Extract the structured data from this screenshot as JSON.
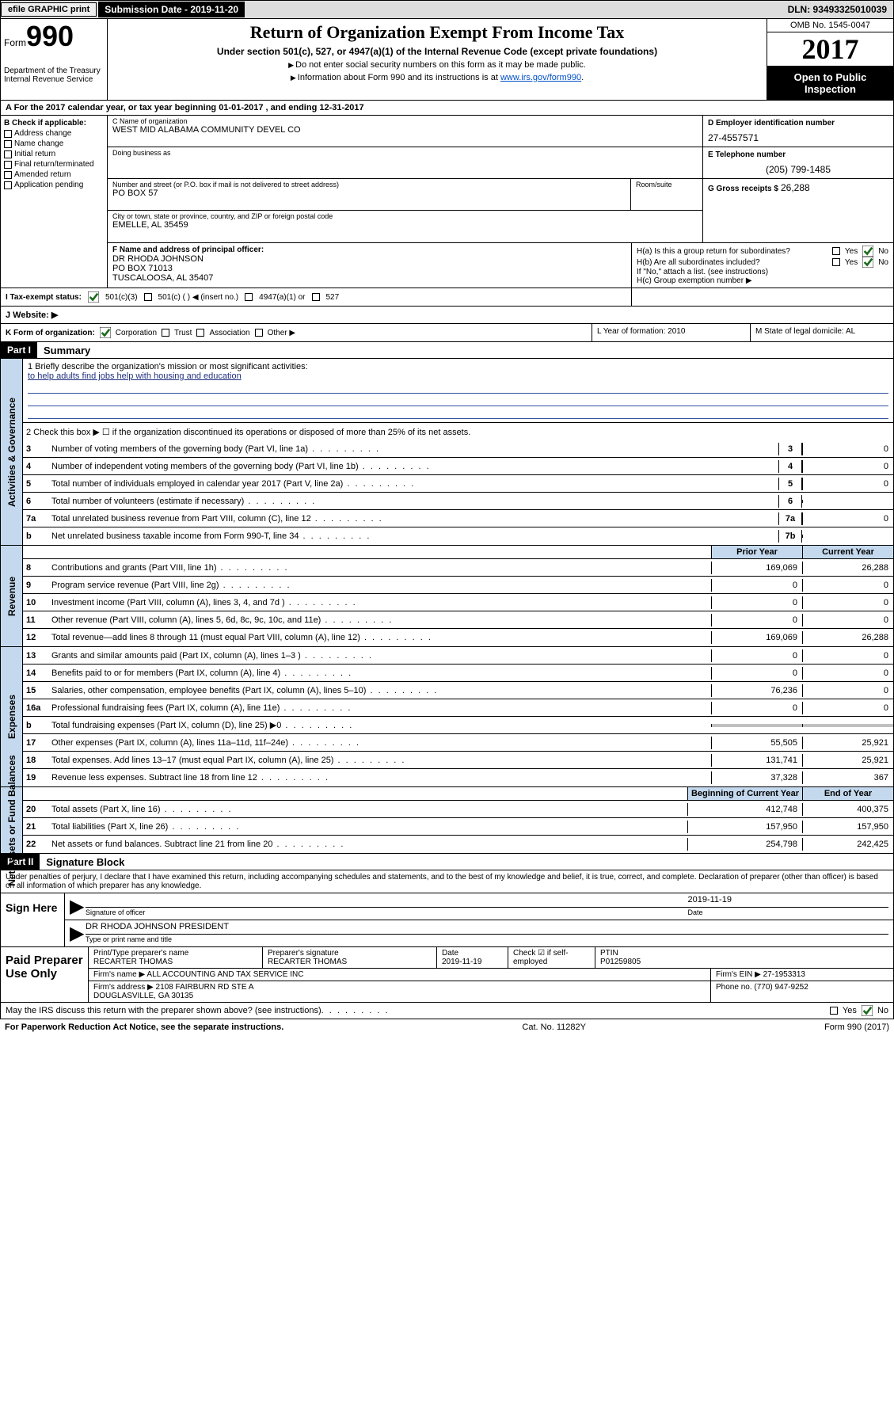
{
  "topbar": {
    "efile": "efile GRAPHIC print",
    "submission_label": "Submission Date - 2019-11-20",
    "dln": "DLN: 93493325010039"
  },
  "header": {
    "form_word": "Form",
    "form_num": "990",
    "dept": "Department of the Treasury\nInternal Revenue Service",
    "title": "Return of Organization Exempt From Income Tax",
    "sub1": "Under section 501(c), 527, or 4947(a)(1) of the Internal Revenue Code (except private foundations)",
    "sub2a": "Do not enter social security numbers on this form as it may be made public.",
    "sub2b": "Information about Form 990 and its instructions is at ",
    "link": "www.irs.gov/form990",
    "omb": "OMB No. 1545-0047",
    "year": "2017",
    "open": "Open to Public Inspection"
  },
  "rowA": "A  For the 2017 calendar year, or tax year beginning 01-01-2017   , and ending 12-31-2017",
  "boxB": {
    "hdr": "B Check if applicable:",
    "items": [
      "Address change",
      "Name change",
      "Initial return",
      "Final return/terminated",
      "Amended return",
      "Application pending"
    ]
  },
  "boxC": {
    "name_lbl": "C Name of organization",
    "name": "WEST MID ALABAMA COMMUNITY DEVEL CO",
    "dba_lbl": "Doing business as",
    "dba": "",
    "street_lbl": "Number and street (or P.O. box if mail is not delivered to street address)",
    "street": "PO BOX 57",
    "room_lbl": "Room/suite",
    "city_lbl": "City or town, state or province, country, and ZIP or foreign postal code",
    "city": "EMELLE, AL  35459"
  },
  "boxD": {
    "lbl": "D Employer identification number",
    "val": "27-4557571"
  },
  "boxE": {
    "lbl": "E Telephone number",
    "val": "(205) 799-1485"
  },
  "boxG": {
    "lbl": "G Gross receipts $",
    "val": "26,288"
  },
  "boxF": {
    "lbl": "F  Name and address of principal officer:",
    "name": "DR RHODA JOHNSON",
    "addr1": "PO BOX 71013",
    "addr2": "TUSCALOOSA, AL  35407"
  },
  "boxH": {
    "a": "H(a)  Is this a group return for subordinates?",
    "b": "H(b)  Are all subordinates included?",
    "note": "If \"No,\" attach a list. (see instructions)",
    "c": "H(c)  Group exemption number ▶",
    "yes": "Yes",
    "no": "No"
  },
  "boxI": {
    "lbl": "I  Tax-exempt status:",
    "opts": [
      "501(c)(3)",
      "501(c) (  ) ◀ (insert no.)",
      "4947(a)(1) or",
      "527"
    ]
  },
  "boxJ": "J  Website: ▶",
  "boxK": {
    "lbl": "K Form of organization:",
    "opts": [
      "Corporation",
      "Trust",
      "Association",
      "Other ▶"
    ]
  },
  "boxL": "L Year of formation: 2010",
  "boxM": "M State of legal domicile: AL",
  "part1": {
    "hdr": "Part I",
    "title": "Summary"
  },
  "summary": {
    "briefly_lbl": "1   Briefly describe the organization's mission or most significant activities:",
    "briefly_val": "to help adults find jobs help with housing and education",
    "line2": "2   Check this box ▶ ☐  if the organization discontinued its operations or disposed of more than 25% of its net assets.",
    "col_prior": "Prior Year",
    "col_current": "Current Year",
    "col_beg": "Beginning of Current Year",
    "col_end": "End of Year",
    "gov": [
      {
        "n": "3",
        "t": "Number of voting members of the governing body (Part VI, line 1a)",
        "rn": "3",
        "v": "0"
      },
      {
        "n": "4",
        "t": "Number of independent voting members of the governing body (Part VI, line 1b)",
        "rn": "4",
        "v": "0"
      },
      {
        "n": "5",
        "t": "Total number of individuals employed in calendar year 2017 (Part V, line 2a)",
        "rn": "5",
        "v": "0"
      },
      {
        "n": "6",
        "t": "Total number of volunteers (estimate if necessary)",
        "rn": "6",
        "v": ""
      },
      {
        "n": "7a",
        "t": "Total unrelated business revenue from Part VIII, column (C), line 12",
        "rn": "7a",
        "v": "0"
      },
      {
        "n": "b",
        "t": "Net unrelated business taxable income from Form 990-T, line 34",
        "rn": "7b",
        "v": ""
      }
    ],
    "rev": [
      {
        "n": "8",
        "t": "Contributions and grants (Part VIII, line 1h)",
        "p": "169,069",
        "c": "26,288"
      },
      {
        "n": "9",
        "t": "Program service revenue (Part VIII, line 2g)",
        "p": "0",
        "c": "0"
      },
      {
        "n": "10",
        "t": "Investment income (Part VIII, column (A), lines 3, 4, and 7d )",
        "p": "0",
        "c": "0"
      },
      {
        "n": "11",
        "t": "Other revenue (Part VIII, column (A), lines 5, 6d, 8c, 9c, 10c, and 11e)",
        "p": "0",
        "c": "0"
      },
      {
        "n": "12",
        "t": "Total revenue—add lines 8 through 11 (must equal Part VIII, column (A), line 12)",
        "p": "169,069",
        "c": "26,288"
      }
    ],
    "exp": [
      {
        "n": "13",
        "t": "Grants and similar amounts paid (Part IX, column (A), lines 1–3 )",
        "p": "0",
        "c": "0"
      },
      {
        "n": "14",
        "t": "Benefits paid to or for members (Part IX, column (A), line 4)",
        "p": "0",
        "c": "0"
      },
      {
        "n": "15",
        "t": "Salaries, other compensation, employee benefits (Part IX, column (A), lines 5–10)",
        "p": "76,236",
        "c": "0"
      },
      {
        "n": "16a",
        "t": "Professional fundraising fees (Part IX, column (A), line 11e)",
        "p": "0",
        "c": "0"
      },
      {
        "n": "b",
        "t": "Total fundraising expenses (Part IX, column (D), line 25) ▶0",
        "p": "",
        "c": "",
        "grey": true
      },
      {
        "n": "17",
        "t": "Other expenses (Part IX, column (A), lines 11a–11d, 11f–24e)",
        "p": "55,505",
        "c": "25,921"
      },
      {
        "n": "18",
        "t": "Total expenses. Add lines 13–17 (must equal Part IX, column (A), line 25)",
        "p": "131,741",
        "c": "25,921"
      },
      {
        "n": "19",
        "t": "Revenue less expenses. Subtract line 18 from line 12",
        "p": "37,328",
        "c": "367"
      }
    ],
    "net": [
      {
        "n": "20",
        "t": "Total assets (Part X, line 16)",
        "p": "412,748",
        "c": "400,375"
      },
      {
        "n": "21",
        "t": "Total liabilities (Part X, line 26)",
        "p": "157,950",
        "c": "157,950"
      },
      {
        "n": "22",
        "t": "Net assets or fund balances. Subtract line 21 from line 20",
        "p": "254,798",
        "c": "242,425"
      }
    ],
    "tabs": {
      "gov": "Activities & Governance",
      "rev": "Revenue",
      "exp": "Expenses",
      "net": "Net Assets or Fund Balances"
    }
  },
  "part2": {
    "hdr": "Part II",
    "title": "Signature Block"
  },
  "sig": {
    "perjury": "Under penalties of perjury, I declare that I have examined this return, including accompanying schedules and statements, and to the best of my knowledge and belief, it is true, correct, and complete. Declaration of preparer (other than officer) is based on all information of which preparer has any knowledge.",
    "sign_here": "Sign Here",
    "sig_officer_lbl": "Signature of officer",
    "date_lbl": "Date",
    "date_val": "2019-11-19",
    "officer_name": "DR RHODA JOHNSON  PRESIDENT",
    "type_lbl": "Type or print name and title"
  },
  "prep": {
    "hdr": "Paid Preparer Use Only",
    "name_lbl": "Print/Type preparer's name",
    "name": "RECARTER THOMAS",
    "sig_lbl": "Preparer's signature",
    "sig": "RECARTER THOMAS",
    "date_lbl": "Date",
    "date": "2019-11-19",
    "self_lbl": "Check ☑ if self-employed",
    "ptin_lbl": "PTIN",
    "ptin": "P01259805",
    "firm_name_lbl": "Firm's name    ▶",
    "firm_name": "ALL ACCOUNTING AND TAX SERVICE INC",
    "firm_ein_lbl": "Firm's EIN ▶",
    "firm_ein": "27-1953313",
    "firm_addr_lbl": "Firm's address ▶",
    "firm_addr": "2108 FAIRBURN RD STE A\nDOUGLASVILLE, GA  30135",
    "phone_lbl": "Phone no.",
    "phone": "(770) 947-9252"
  },
  "irs_discuss": "May the IRS discuss this return with the preparer shown above? (see instructions)",
  "footer": {
    "left": "For Paperwork Reduction Act Notice, see the separate instructions.",
    "mid": "Cat. No. 11282Y",
    "right": "Form 990 (2017)"
  },
  "colors": {
    "blue_bg": "#c4d9ed",
    "link": "#0050c8",
    "check": "#1a6b1a"
  }
}
